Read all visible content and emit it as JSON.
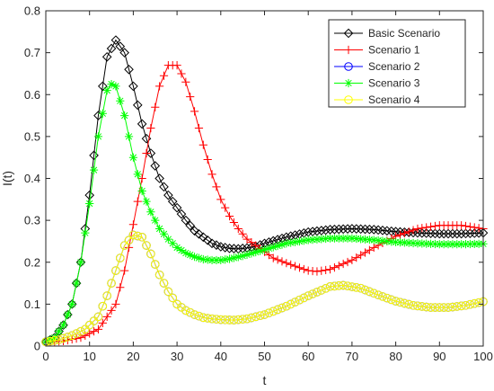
{
  "chart_data": {
    "type": "line",
    "xlabel": "t",
    "ylabel": "I(t)",
    "xlim": [
      0,
      100
    ],
    "ylim": [
      0,
      0.8
    ],
    "xticks": [
      "0",
      "10",
      "20",
      "30",
      "40",
      "50",
      "60",
      "70",
      "80",
      "90",
      "100"
    ],
    "yticks": [
      "0",
      "0.1",
      "0.2",
      "0.3",
      "0.4",
      "0.5",
      "0.6",
      "0.7",
      "0.8"
    ],
    "grid": false,
    "legend_position": "top-right",
    "series": [
      {
        "name": "Basic Scenario",
        "color": "#000000",
        "marker": "diamond",
        "points": [
          [
            0,
            0.01
          ],
          [
            2,
            0.02
          ],
          [
            4,
            0.05
          ],
          [
            6,
            0.1
          ],
          [
            8,
            0.2
          ],
          [
            10,
            0.36
          ],
          [
            12,
            0.55
          ],
          [
            14,
            0.69
          ],
          [
            16,
            0.73
          ],
          [
            18,
            0.7
          ],
          [
            20,
            0.62
          ],
          [
            22,
            0.53
          ],
          [
            24,
            0.46
          ],
          [
            26,
            0.4
          ],
          [
            28,
            0.36
          ],
          [
            30,
            0.33
          ],
          [
            32,
            0.3
          ],
          [
            34,
            0.275
          ],
          [
            36,
            0.26
          ],
          [
            38,
            0.245
          ],
          [
            40,
            0.237
          ],
          [
            42,
            0.233
          ],
          [
            44,
            0.232
          ],
          [
            46,
            0.234
          ],
          [
            48,
            0.238
          ],
          [
            50,
            0.245
          ],
          [
            55,
            0.26
          ],
          [
            60,
            0.272
          ],
          [
            65,
            0.278
          ],
          [
            70,
            0.28
          ],
          [
            75,
            0.278
          ],
          [
            80,
            0.273
          ],
          [
            85,
            0.27
          ],
          [
            90,
            0.268
          ],
          [
            95,
            0.268
          ],
          [
            100,
            0.27
          ]
        ]
      },
      {
        "name": "Scenario 1",
        "color": "#ff0000",
        "marker": "plus",
        "points": [
          [
            0,
            0.01
          ],
          [
            4,
            0.012
          ],
          [
            8,
            0.02
          ],
          [
            12,
            0.04
          ],
          [
            16,
            0.1
          ],
          [
            18,
            0.18
          ],
          [
            20,
            0.29
          ],
          [
            22,
            0.4
          ],
          [
            24,
            0.52
          ],
          [
            26,
            0.62
          ],
          [
            28,
            0.67
          ],
          [
            30,
            0.67
          ],
          [
            32,
            0.63
          ],
          [
            34,
            0.56
          ],
          [
            36,
            0.48
          ],
          [
            38,
            0.41
          ],
          [
            40,
            0.35
          ],
          [
            42,
            0.31
          ],
          [
            44,
            0.28
          ],
          [
            46,
            0.255
          ],
          [
            48,
            0.24
          ],
          [
            50,
            0.225
          ],
          [
            52,
            0.21
          ],
          [
            55,
            0.198
          ],
          [
            58,
            0.187
          ],
          [
            60,
            0.18
          ],
          [
            62,
            0.178
          ],
          [
            65,
            0.183
          ],
          [
            70,
            0.205
          ],
          [
            75,
            0.235
          ],
          [
            80,
            0.262
          ],
          [
            85,
            0.28
          ],
          [
            90,
            0.288
          ],
          [
            95,
            0.288
          ],
          [
            100,
            0.28
          ]
        ]
      },
      {
        "name": "Scenario 2",
        "color": "#0000ff",
        "marker": "circle",
        "points": [
          [
            0,
            0.01
          ],
          [
            3,
            0.015
          ],
          [
            6,
            0.025
          ],
          [
            9,
            0.04
          ],
          [
            12,
            0.07
          ],
          [
            14,
            0.12
          ],
          [
            16,
            0.18
          ],
          [
            18,
            0.24
          ],
          [
            20,
            0.265
          ],
          [
            22,
            0.26
          ],
          [
            24,
            0.22
          ],
          [
            26,
            0.17
          ],
          [
            28,
            0.13
          ],
          [
            30,
            0.1
          ],
          [
            32,
            0.085
          ],
          [
            34,
            0.075
          ],
          [
            36,
            0.068
          ],
          [
            38,
            0.065
          ],
          [
            40,
            0.063
          ],
          [
            43,
            0.062
          ],
          [
            46,
            0.065
          ],
          [
            50,
            0.075
          ],
          [
            55,
            0.095
          ],
          [
            60,
            0.12
          ],
          [
            65,
            0.142
          ],
          [
            68,
            0.145
          ],
          [
            72,
            0.138
          ],
          [
            76,
            0.122
          ],
          [
            80,
            0.107
          ],
          [
            84,
            0.097
          ],
          [
            88,
            0.092
          ],
          [
            92,
            0.092
          ],
          [
            96,
            0.097
          ],
          [
            100,
            0.106
          ]
        ]
      },
      {
        "name": "Scenario 3",
        "color": "#00ff00",
        "marker": "asterisk",
        "points": [
          [
            0,
            0.01
          ],
          [
            2,
            0.02
          ],
          [
            4,
            0.05
          ],
          [
            6,
            0.1
          ],
          [
            8,
            0.2
          ],
          [
            10,
            0.34
          ],
          [
            12,
            0.5
          ],
          [
            14,
            0.61
          ],
          [
            15,
            0.625
          ],
          [
            16,
            0.62
          ],
          [
            18,
            0.55
          ],
          [
            20,
            0.45
          ],
          [
            22,
            0.37
          ],
          [
            24,
            0.32
          ],
          [
            26,
            0.28
          ],
          [
            28,
            0.255
          ],
          [
            30,
            0.235
          ],
          [
            32,
            0.222
          ],
          [
            34,
            0.213
          ],
          [
            36,
            0.207
          ],
          [
            38,
            0.205
          ],
          [
            40,
            0.205
          ],
          [
            42,
            0.208
          ],
          [
            45,
            0.215
          ],
          [
            50,
            0.23
          ],
          [
            55,
            0.245
          ],
          [
            60,
            0.253
          ],
          [
            65,
            0.257
          ],
          [
            70,
            0.257
          ],
          [
            75,
            0.253
          ],
          [
            80,
            0.248
          ],
          [
            85,
            0.245
          ],
          [
            90,
            0.243
          ],
          [
            95,
            0.243
          ],
          [
            100,
            0.244
          ]
        ]
      },
      {
        "name": "Scenario 4",
        "color": "#ffff00",
        "marker": "circle",
        "points": [
          [
            0,
            0.01
          ],
          [
            3,
            0.015
          ],
          [
            6,
            0.025
          ],
          [
            9,
            0.04
          ],
          [
            12,
            0.07
          ],
          [
            14,
            0.12
          ],
          [
            16,
            0.18
          ],
          [
            18,
            0.24
          ],
          [
            20,
            0.265
          ],
          [
            22,
            0.26
          ],
          [
            24,
            0.22
          ],
          [
            26,
            0.17
          ],
          [
            28,
            0.13
          ],
          [
            30,
            0.1
          ],
          [
            32,
            0.085
          ],
          [
            34,
            0.075
          ],
          [
            36,
            0.068
          ],
          [
            38,
            0.065
          ],
          [
            40,
            0.063
          ],
          [
            43,
            0.062
          ],
          [
            46,
            0.065
          ],
          [
            50,
            0.075
          ],
          [
            55,
            0.095
          ],
          [
            60,
            0.12
          ],
          [
            65,
            0.142
          ],
          [
            68,
            0.145
          ],
          [
            72,
            0.138
          ],
          [
            76,
            0.122
          ],
          [
            80,
            0.107
          ],
          [
            84,
            0.097
          ],
          [
            88,
            0.092
          ],
          [
            92,
            0.092
          ],
          [
            96,
            0.097
          ],
          [
            100,
            0.106
          ]
        ]
      }
    ]
  }
}
